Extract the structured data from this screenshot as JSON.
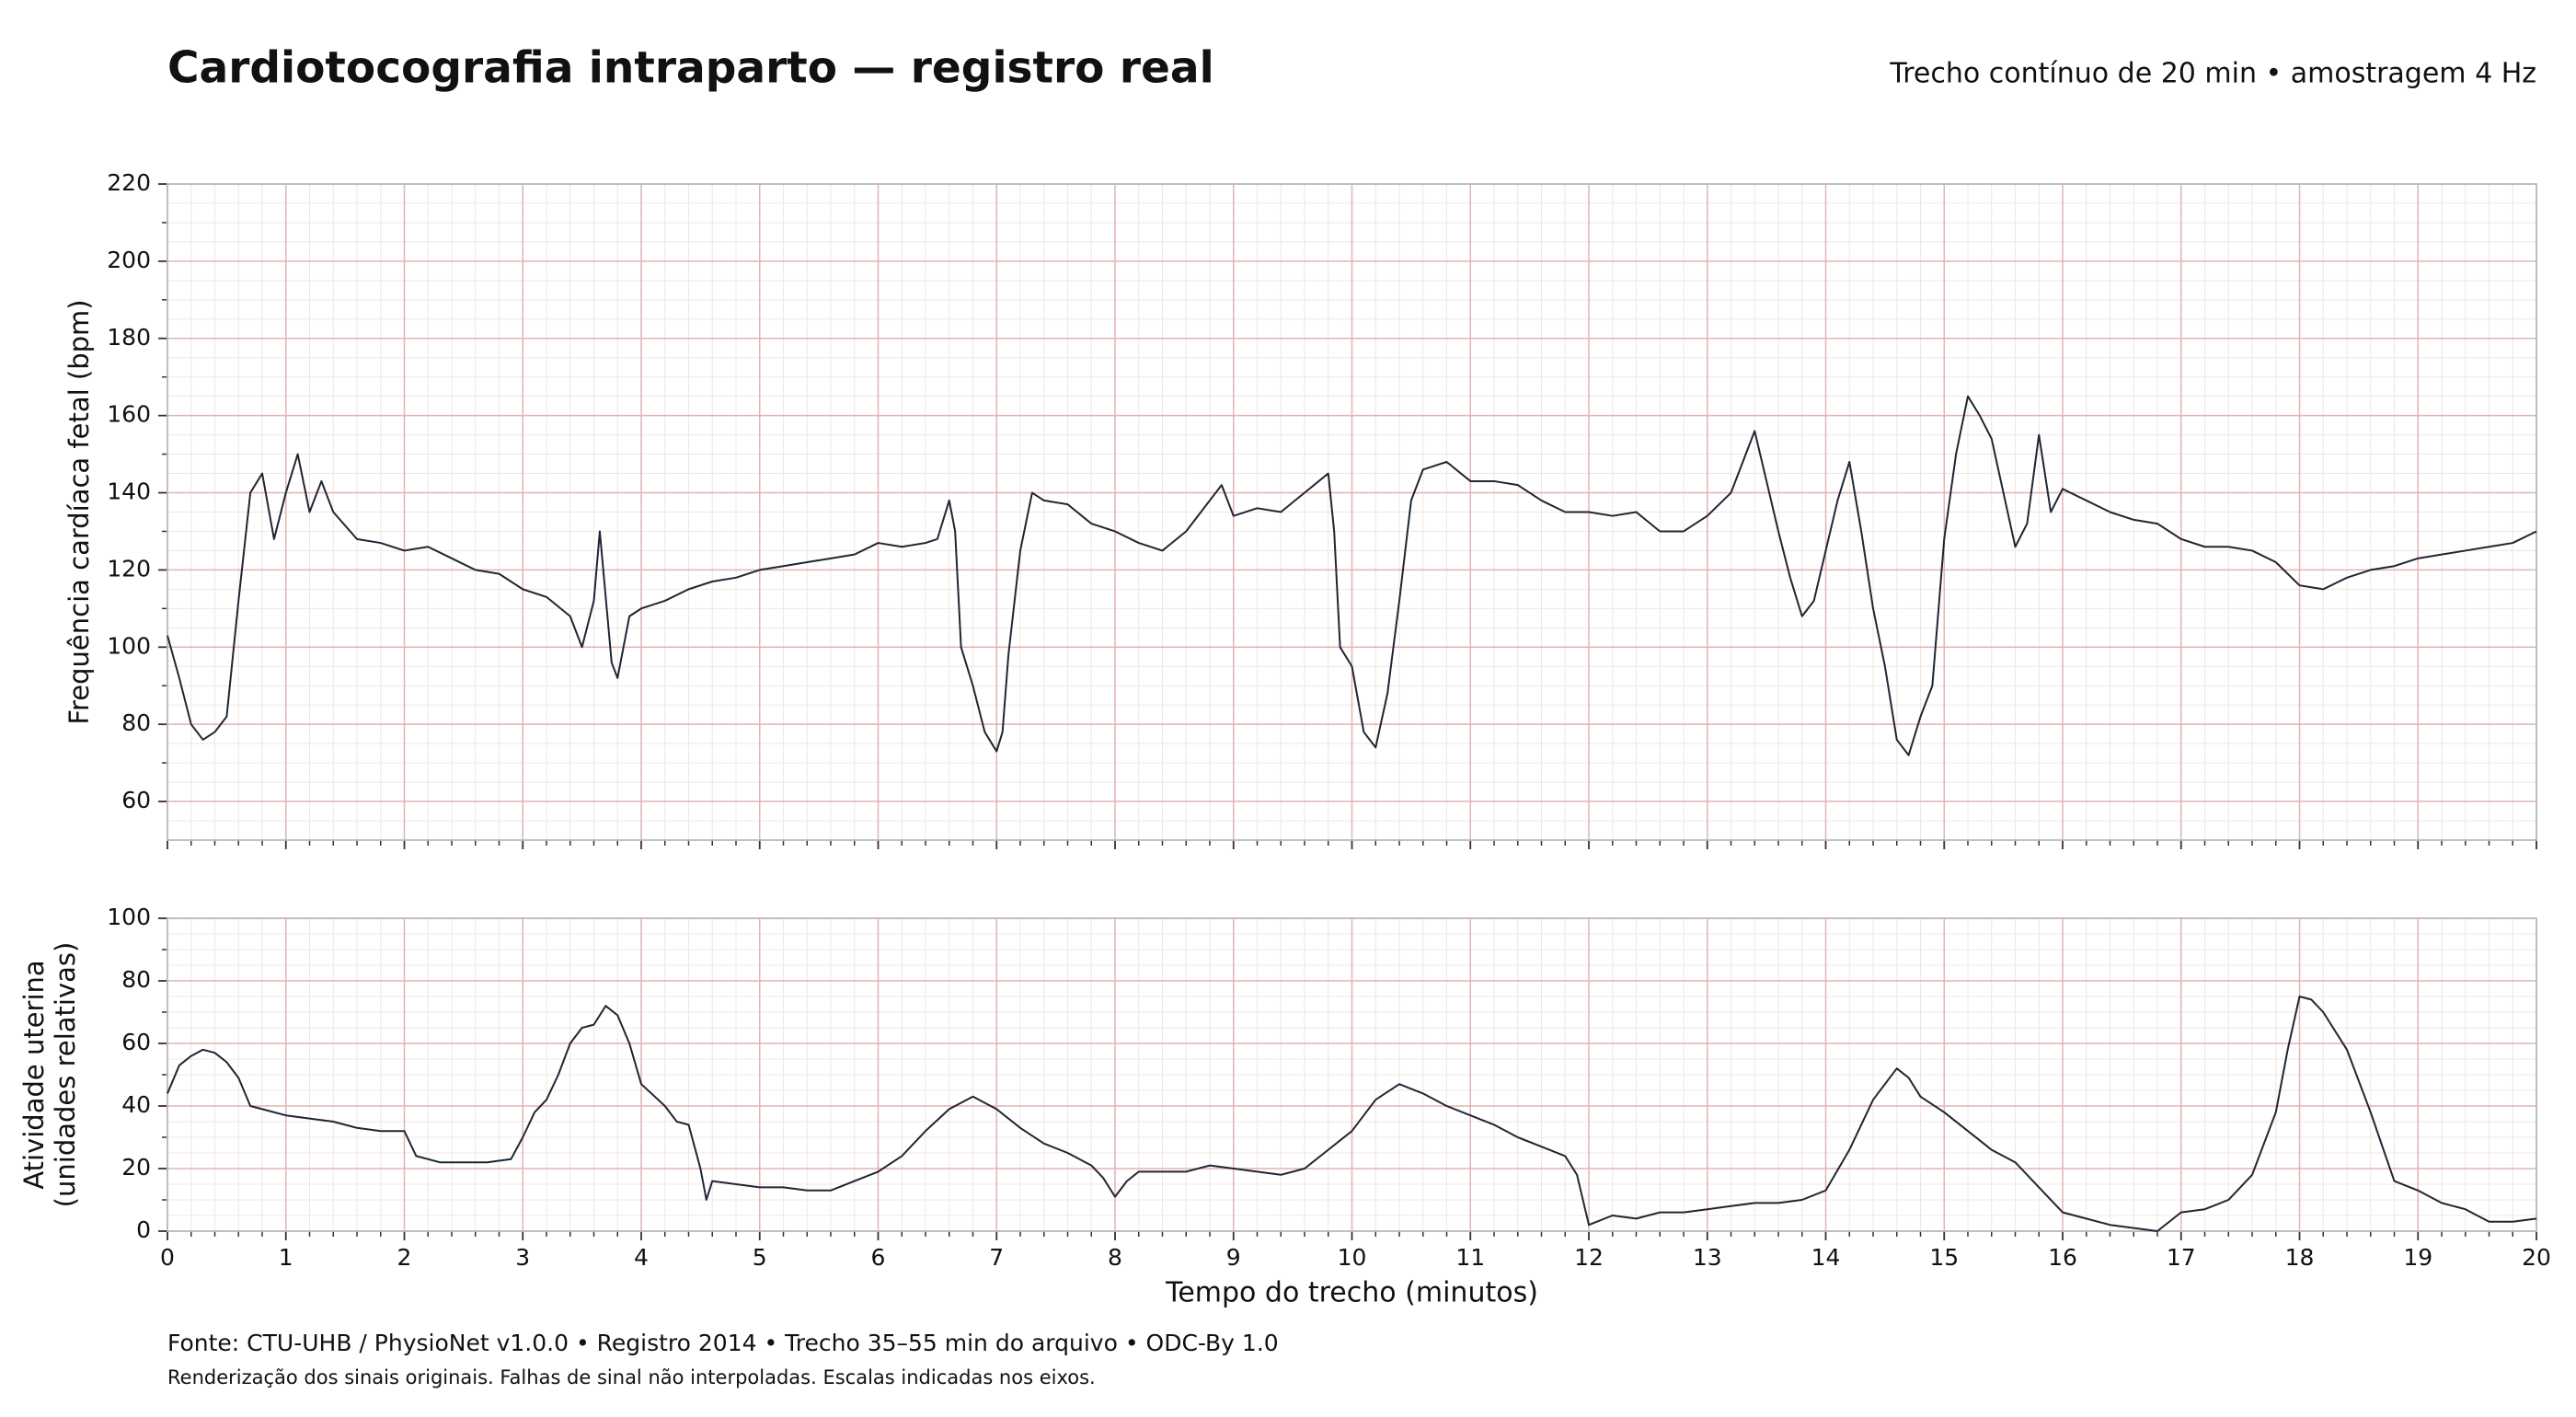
{
  "header": {
    "title": "Cardiotocografia intraparto — registro real",
    "subtitle": "Trecho contínuo de 20 min • amostragem 4 Hz"
  },
  "footer": {
    "source": "Fonte: CTU-UHB / PhysioNet v1.0.0 • Registro 2014 • Trecho 35–55 min do arquivo • ODC-By 1.0",
    "note": "Renderização dos sinais originais. Falhas de sinal não interpoladas. Escalas indicadas nos eixos."
  },
  "chart_data": [
    {
      "type": "line",
      "ylabel": [
        "Frequência cardíaca fetal (bpm)"
      ],
      "x": [
        0,
        0.1,
        0.2,
        0.3,
        0.4,
        0.5,
        0.6,
        0.7,
        0.8,
        0.9,
        1.0,
        1.1,
        1.2,
        1.3,
        1.4,
        1.6,
        1.8,
        2.0,
        2.2,
        2.4,
        2.6,
        2.8,
        3.0,
        3.2,
        3.4,
        3.5,
        3.6,
        3.65,
        3.75,
        3.8,
        3.9,
        4.0,
        4.2,
        4.4,
        4.6,
        4.8,
        5.0,
        5.2,
        5.4,
        5.6,
        5.8,
        6.0,
        6.2,
        6.4,
        6.5,
        6.6,
        6.65,
        6.7,
        6.8,
        6.9,
        7.0,
        7.05,
        7.1,
        7.2,
        7.3,
        7.4,
        7.6,
        7.8,
        8.0,
        8.2,
        8.4,
        8.6,
        8.8,
        8.9,
        9.0,
        9.2,
        9.4,
        9.6,
        9.8,
        9.85,
        9.9,
        10.0,
        10.1,
        10.2,
        10.3,
        10.4,
        10.5,
        10.6,
        10.8,
        11.0,
        11.2,
        11.4,
        11.6,
        11.8,
        12.0,
        12.2,
        12.4,
        12.6,
        12.8,
        13.0,
        13.2,
        13.4,
        13.5,
        13.6,
        13.7,
        13.8,
        13.9,
        14.0,
        14.1,
        14.2,
        14.3,
        14.4,
        14.5,
        14.6,
        14.7,
        14.8,
        14.9,
        15.0,
        15.1,
        15.2,
        15.3,
        15.4,
        15.5,
        15.6,
        15.7,
        15.8,
        15.9,
        16.0,
        16.2,
        16.4,
        16.6,
        16.8,
        17.0,
        17.2,
        17.4,
        17.6,
        17.8,
        18.0,
        18.2,
        18.4,
        18.6,
        18.8,
        19.0,
        19.2,
        19.4,
        19.6,
        19.8,
        20.0
      ],
      "series": [
        {
          "color": "#1f2633",
          "values": [
            103,
            92,
            80,
            76,
            78,
            82,
            112,
            140,
            145,
            128,
            140,
            150,
            135,
            143,
            135,
            128,
            127,
            125,
            126,
            123,
            120,
            119,
            115,
            113,
            108,
            100,
            112,
            130,
            96,
            92,
            108,
            110,
            112,
            115,
            117,
            118,
            120,
            121,
            122,
            123,
            124,
            127,
            126,
            127,
            128,
            138,
            130,
            100,
            90,
            78,
            73,
            78,
            98,
            125,
            140,
            138,
            137,
            132,
            130,
            127,
            125,
            130,
            138,
            142,
            134,
            136,
            135,
            140,
            145,
            130,
            100,
            95,
            78,
            74,
            88,
            112,
            138,
            146,
            148,
            143,
            143,
            142,
            138,
            135,
            135,
            134,
            135,
            130,
            130,
            134,
            140,
            156,
            143,
            130,
            118,
            108,
            112,
            125,
            138,
            148,
            130,
            110,
            95,
            76,
            72,
            82,
            90,
            128,
            150,
            165,
            160,
            154,
            140,
            126,
            132,
            155,
            135,
            141,
            138,
            135,
            133,
            132,
            128,
            126,
            126,
            125,
            122,
            116,
            115,
            118,
            120,
            121,
            123,
            124,
            125,
            126,
            127,
            130
          ]
        }
      ],
      "ylim": [
        50,
        220
      ],
      "yticks": [
        60,
        80,
        100,
        120,
        140,
        160,
        180,
        200,
        220
      ],
      "xlim": [
        0,
        20
      ],
      "xticks": [
        0,
        1,
        2,
        3,
        4,
        5,
        6,
        7,
        8,
        9,
        10,
        11,
        12,
        13,
        14,
        15,
        16,
        17,
        18,
        19,
        20
      ],
      "grid": true
    },
    {
      "type": "line",
      "ylabel": [
        "Atividade uterina",
        "(unidades relativas)"
      ],
      "xlabel": "Tempo do trecho (minutos)",
      "x": [
        0,
        0.1,
        0.2,
        0.3,
        0.4,
        0.5,
        0.6,
        0.7,
        0.8,
        1.0,
        1.2,
        1.4,
        1.6,
        1.8,
        2.0,
        2.1,
        2.3,
        2.5,
        2.7,
        2.9,
        3.0,
        3.1,
        3.2,
        3.3,
        3.4,
        3.5,
        3.6,
        3.7,
        3.8,
        3.9,
        4.0,
        4.2,
        4.3,
        4.4,
        4.5,
        4.55,
        4.6,
        4.8,
        5.0,
        5.2,
        5.4,
        5.6,
        5.8,
        6.0,
        6.2,
        6.4,
        6.6,
        6.8,
        7.0,
        7.2,
        7.4,
        7.6,
        7.8,
        7.9,
        8.0,
        8.1,
        8.2,
        8.4,
        8.6,
        8.8,
        9.0,
        9.2,
        9.4,
        9.6,
        9.8,
        10.0,
        10.2,
        10.4,
        10.6,
        10.8,
        11.0,
        11.2,
        11.4,
        11.6,
        11.8,
        11.9,
        12.0,
        12.2,
        12.4,
        12.6,
        12.8,
        13.0,
        13.2,
        13.4,
        13.6,
        13.8,
        14.0,
        14.2,
        14.4,
        14.6,
        14.7,
        14.8,
        15.0,
        15.2,
        15.4,
        15.6,
        15.8,
        16.0,
        16.2,
        16.4,
        16.6,
        16.8,
        17.0,
        17.2,
        17.4,
        17.6,
        17.8,
        17.9,
        18.0,
        18.1,
        18.2,
        18.4,
        18.6,
        18.8,
        19.0,
        19.2,
        19.4,
        19.6,
        19.8,
        20.0
      ],
      "series": [
        {
          "color": "#1f2633",
          "values": [
            44,
            53,
            56,
            58,
            57,
            54,
            49,
            40,
            39,
            37,
            36,
            35,
            33,
            32,
            32,
            24,
            22,
            22,
            22,
            23,
            30,
            38,
            42,
            50,
            60,
            65,
            66,
            72,
            69,
            60,
            47,
            40,
            35,
            34,
            20,
            10,
            16,
            15,
            14,
            14,
            13,
            13,
            16,
            19,
            24,
            32,
            39,
            43,
            39,
            33,
            28,
            25,
            21,
            17,
            11,
            16,
            19,
            19,
            19,
            21,
            20,
            19,
            18,
            20,
            26,
            32,
            42,
            47,
            44,
            40,
            37,
            34,
            30,
            27,
            24,
            18,
            2,
            5,
            4,
            6,
            6,
            7,
            8,
            9,
            9,
            10,
            13,
            26,
            42,
            52,
            49,
            43,
            38,
            32,
            26,
            22,
            14,
            6,
            4,
            2,
            1,
            0,
            6,
            7,
            10,
            18,
            38,
            58,
            75,
            74,
            70,
            58,
            38,
            16,
            13,
            9,
            7,
            3,
            3,
            4
          ]
        }
      ],
      "ylim": [
        0,
        100
      ],
      "yticks": [
        0,
        20,
        40,
        60,
        80,
        100
      ],
      "xlim": [
        0,
        20
      ],
      "xticks": [
        0,
        1,
        2,
        3,
        4,
        5,
        6,
        7,
        8,
        9,
        10,
        11,
        12,
        13,
        14,
        15,
        16,
        17,
        18,
        19,
        20
      ],
      "grid": true
    }
  ]
}
